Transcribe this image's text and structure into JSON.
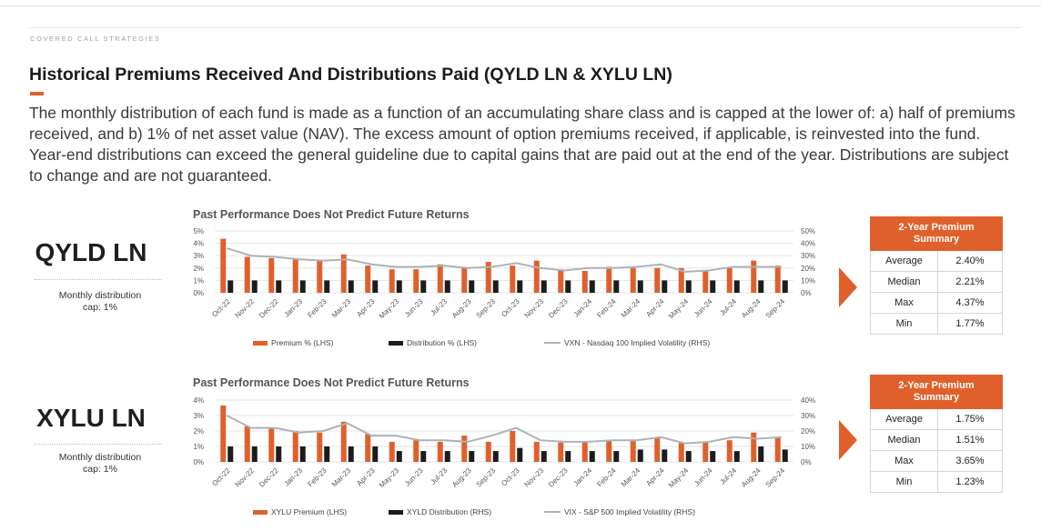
{
  "header": {
    "eyebrow": "COVERED CALL STRATEGIES",
    "title": "Historical Premiums Received And Distributions Paid (QYLD LN & XYLU LN)",
    "intro": "The monthly distribution of each fund is made as a function of an accumulating share class and is capped at the lower of: a) half of premiums received, and b) 1% of net asset value (NAV). The excess amount of option premiums received, if applicable, is reinvested into the fund. Year-end distributions can exceed the general guideline due to capital gains that are paid out at the end of the year. Distributions are subject to change and are not guaranteed."
  },
  "colors": {
    "accent": "#e0602b",
    "distribution": "#1c1c1c",
    "volatility": "#a9b3bb"
  },
  "sections": [
    {
      "fund": "QYLD LN",
      "cap_line1": "Monthly distribution",
      "cap_line2": "cap: 1%",
      "chart_title": "Past Performance Does Not Predict Future Returns",
      "summary": {
        "heading_line1": "2-Year Premium",
        "heading_line2": "Summary",
        "rows": [
          {
            "label": "Average",
            "value": "2.40%"
          },
          {
            "label": "Median",
            "value": "2.21%"
          },
          {
            "label": "Max",
            "value": "4.37%"
          },
          {
            "label": "Min",
            "value": "1.77%"
          }
        ]
      }
    },
    {
      "fund": "XYLU LN",
      "cap_line1": "Monthly distribution",
      "cap_line2": "cap: 1%",
      "chart_title": "Past Performance Does Not Predict Future Returns",
      "summary": {
        "heading_line1": "2-Year Premium",
        "heading_line2": "Summary",
        "rows": [
          {
            "label": "Average",
            "value": "1.75%"
          },
          {
            "label": "Median",
            "value": "1.51%"
          },
          {
            "label": "Max",
            "value": "3.65%"
          },
          {
            "label": "Min",
            "value": "1.23%"
          }
        ]
      }
    }
  ],
  "chart_data": [
    {
      "type": "bar",
      "title": "Past Performance Does Not Predict Future Returns",
      "categories": [
        "Oct-22",
        "Nov-22",
        "Dec-22",
        "Jan-23",
        "Feb-23",
        "Mar-23",
        "Apr-23",
        "May-23",
        "Jun-23",
        "Jul-23",
        "Aug-23",
        "Sep-23",
        "Oct-23",
        "Nov-23",
        "Dec-23",
        "Jan-24",
        "Feb-24",
        "Mar-24",
        "Apr-24",
        "May-24",
        "Jun-24",
        "Jul-24",
        "Aug-24",
        "Sep-24"
      ],
      "left_ticks": [
        "0%",
        "1%",
        "2%",
        "3%",
        "4%",
        "5%"
      ],
      "right_ticks": [
        "0%",
        "10%",
        "20%",
        "30%",
        "40%",
        "50%"
      ],
      "ylim_left": [
        0,
        5
      ],
      "ylim_right": [
        0,
        50
      ],
      "series": [
        {
          "name": "Premium % (LHS)",
          "kind": "bar",
          "axis": "left",
          "values": [
            4.37,
            2.9,
            2.8,
            2.8,
            2.6,
            3.1,
            2.2,
            1.9,
            1.9,
            2.3,
            2.0,
            2.5,
            2.2,
            2.6,
            1.8,
            1.77,
            2.1,
            2.0,
            2.0,
            2.0,
            1.8,
            2.0,
            2.6,
            2.2
          ]
        },
        {
          "name": "Distribution % (LHS)",
          "kind": "bar",
          "axis": "left",
          "values": [
            1,
            1,
            1,
            1,
            1,
            1,
            1,
            1,
            1,
            1,
            1,
            1,
            1,
            1,
            1,
            1,
            1,
            1,
            1,
            1,
            1,
            1,
            1,
            1
          ]
        },
        {
          "name": "VXN - Nasdaq 100 Implied Volatility (RHS)",
          "kind": "line",
          "axis": "right",
          "values": [
            36,
            30,
            29,
            27,
            26,
            27,
            23,
            21,
            21,
            22,
            20,
            21,
            24,
            20,
            18,
            20,
            20,
            21,
            23,
            17,
            18,
            21,
            21,
            21
          ]
        }
      ]
    },
    {
      "type": "bar",
      "title": "Past Performance Does Not Predict Future Returns",
      "categories": [
        "Oct-22",
        "Nov-22",
        "Dec-22",
        "Jan-23",
        "Feb-23",
        "Mar-23",
        "Apr-23",
        "May-23",
        "Jun-23",
        "Jul-23",
        "Aug-23",
        "Sep-23",
        "Oct-23",
        "Nov-23",
        "Dec-23",
        "Jan-24",
        "Feb-24",
        "Mar-24",
        "Apr-24",
        "May-24",
        "Jun-24",
        "Jul-24",
        "Aug-24",
        "Sep-24"
      ],
      "left_ticks": [
        "0%",
        "1%",
        "2%",
        "3%",
        "4%"
      ],
      "right_ticks": [
        "0%",
        "10%",
        "20%",
        "30%",
        "40%"
      ],
      "ylim_left": [
        0,
        4
      ],
      "ylim_right": [
        0,
        40
      ],
      "series": [
        {
          "name": "XYLU Premium (LHS)",
          "kind": "bar",
          "axis": "left",
          "values": [
            3.65,
            2.3,
            2.2,
            2.0,
            1.9,
            2.6,
            1.8,
            1.3,
            1.4,
            1.3,
            1.7,
            1.3,
            2.0,
            1.3,
            1.25,
            1.3,
            1.35,
            1.35,
            1.6,
            1.23,
            1.3,
            1.4,
            1.9,
            1.6
          ]
        },
        {
          "name": "XYLD Distribution (RHS)",
          "kind": "bar",
          "axis": "left",
          "values": [
            1,
            1,
            1,
            1,
            1,
            1,
            1,
            0.7,
            0.7,
            0.7,
            0.7,
            0.7,
            0.9,
            0.7,
            0.7,
            0.7,
            0.7,
            0.8,
            0.8,
            0.7,
            0.7,
            0.7,
            1,
            0.8
          ]
        },
        {
          "name": "VIX - S&P 500 Implied Volatility (RHS)",
          "kind": "line",
          "axis": "right",
          "values": [
            30,
            22,
            22,
            19,
            20,
            25,
            17,
            17,
            14,
            14,
            13,
            17,
            22,
            14,
            13,
            13,
            14,
            14,
            16,
            12,
            13,
            16,
            15,
            16
          ]
        }
      ]
    }
  ]
}
